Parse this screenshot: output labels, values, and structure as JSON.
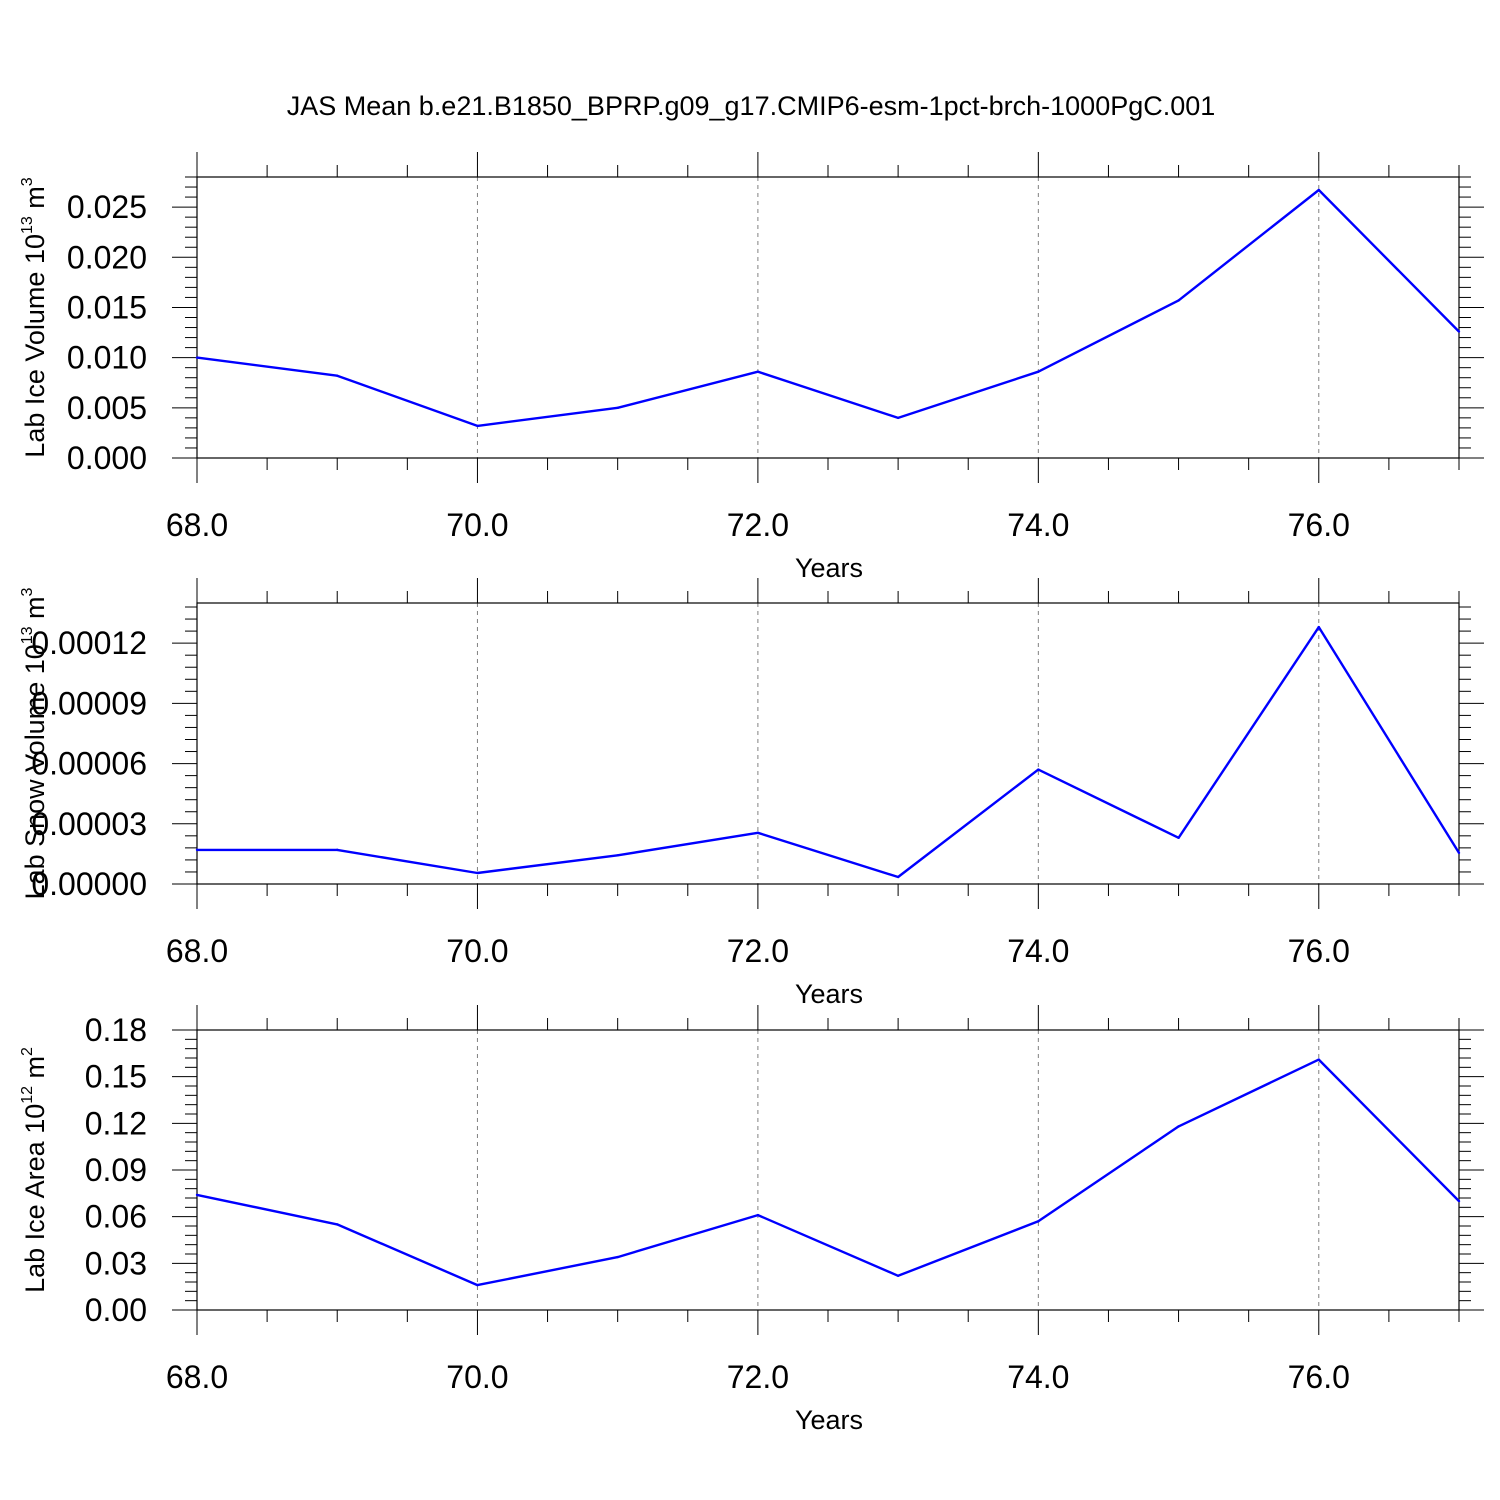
{
  "title": "JAS Mean b.e21.B1850_BPRP.g09_g17.CMIP6-esm-1pct-brch-1000PgC.001",
  "colors": {
    "line": "#0000ff",
    "axis": "#000000",
    "grid": "#808080"
  },
  "chart_data": [
    {
      "type": "line",
      "xlabel": "Years",
      "ylabel": {
        "main": "Lab Ice Volume 10",
        "exp": "13",
        "unit": " m",
        "unit_exp": "3"
      },
      "x": [
        68,
        69,
        70,
        71,
        72,
        73,
        74,
        75,
        76,
        77
      ],
      "series": [
        {
          "values": [
            0.01,
            0.0082,
            0.0032,
            0.005,
            0.0086,
            0.004,
            0.0086,
            0.0157,
            0.0267,
            0.0126
          ]
        }
      ],
      "xlim": [
        68,
        77
      ],
      "ylim": [
        0,
        0.028
      ],
      "xticks": [
        68,
        70,
        72,
        74,
        76
      ],
      "xtick_labels": [
        "68.0",
        "70.0",
        "72.0",
        "74.0",
        "76.0"
      ],
      "yticks": [
        0,
        0.005,
        0.01,
        0.015,
        0.02,
        0.025
      ],
      "ytick_labels": [
        "0.000",
        "0.005",
        "0.010",
        "0.015",
        "0.020",
        "0.025"
      ],
      "grid": "x-dashed"
    },
    {
      "type": "line",
      "xlabel": "Years",
      "ylabel": {
        "main": "Lab Snow Volume 10",
        "exp": "13",
        "unit": " m",
        "unit_exp": "3"
      },
      "x": [
        68,
        69,
        70,
        71,
        72,
        73,
        74,
        75,
        76,
        77
      ],
      "series": [
        {
          "values": [
            1.7e-05,
            1.7e-05,
            5.5e-06,
            1.43e-05,
            2.55e-05,
            3.5e-06,
            5.7e-05,
            2.3e-05,
            0.000128,
            1.55e-05
          ]
        }
      ],
      "xlim": [
        68,
        77
      ],
      "ylim": [
        0,
        0.00014
      ],
      "xticks": [
        68,
        70,
        72,
        74,
        76
      ],
      "xtick_labels": [
        "68.0",
        "70.0",
        "72.0",
        "74.0",
        "76.0"
      ],
      "yticks": [
        0,
        3e-05,
        6e-05,
        9e-05,
        0.00012
      ],
      "ytick_labels": [
        "0.00000",
        "0.00003",
        "0.00006",
        "0.00009",
        "0.00012"
      ],
      "grid": "x-dashed"
    },
    {
      "type": "line",
      "xlabel": "Years",
      "ylabel": {
        "main": "Lab Ice Area 10",
        "exp": "12",
        "unit": " m",
        "unit_exp": "2"
      },
      "x": [
        68,
        69,
        70,
        71,
        72,
        73,
        74,
        75,
        76,
        77
      ],
      "series": [
        {
          "values": [
            0.074,
            0.055,
            0.016,
            0.034,
            0.061,
            0.022,
            0.057,
            0.118,
            0.161,
            0.07
          ]
        }
      ],
      "xlim": [
        68,
        77
      ],
      "ylim": [
        0,
        0.18
      ],
      "xticks": [
        68,
        70,
        72,
        74,
        76
      ],
      "xtick_labels": [
        "68.0",
        "70.0",
        "72.0",
        "74.0",
        "76.0"
      ],
      "yticks": [
        0,
        0.03,
        0.06,
        0.09,
        0.12,
        0.15,
        0.18
      ],
      "ytick_labels": [
        "0.00",
        "0.03",
        "0.06",
        "0.09",
        "0.12",
        "0.15",
        "0.18"
      ],
      "grid": "x-dashed"
    }
  ]
}
